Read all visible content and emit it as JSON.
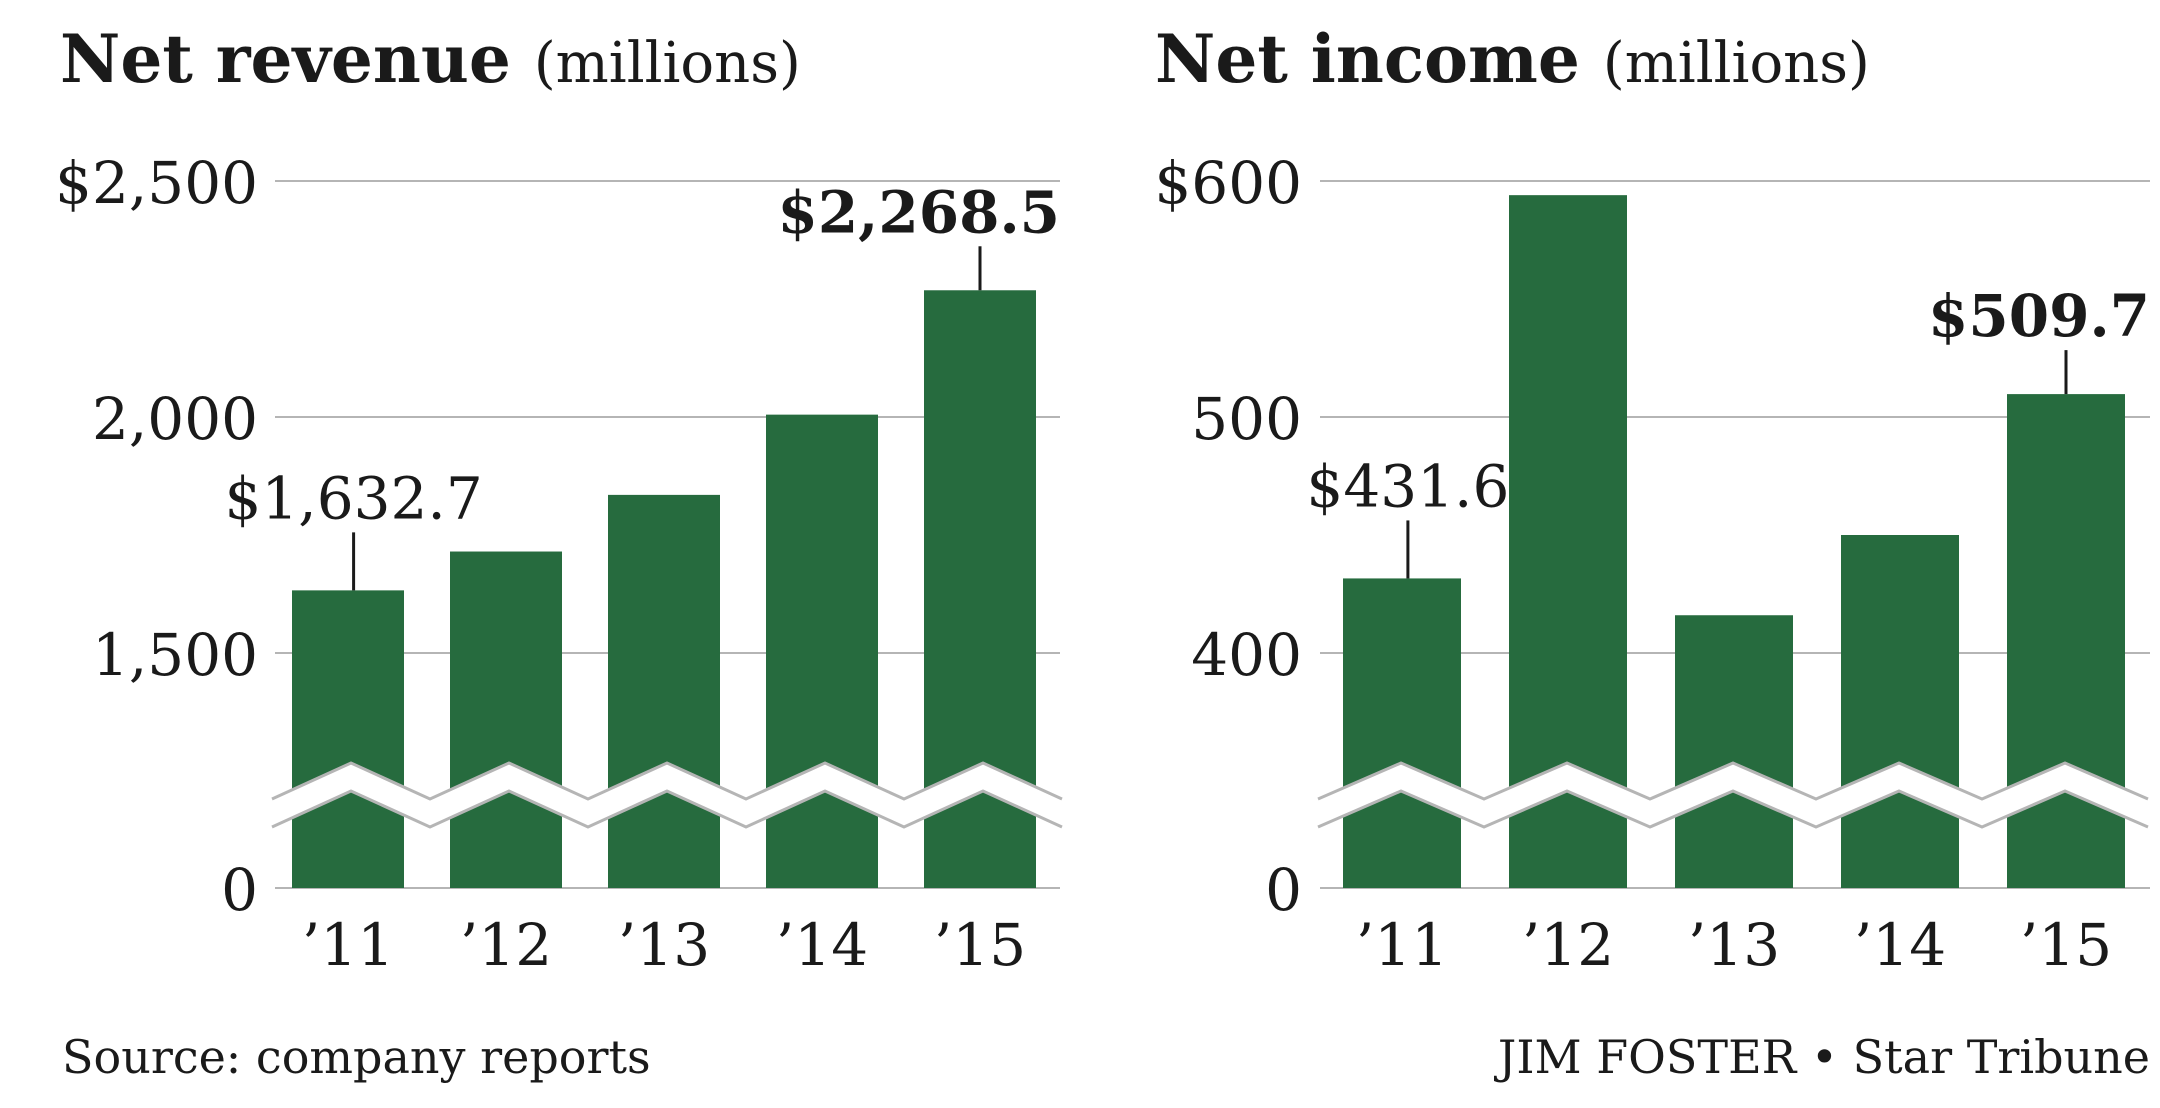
{
  "chart_data": [
    {
      "type": "bar",
      "title": "Net revenue",
      "title_unit": "(millions)",
      "categories": [
        "’11",
        "’12",
        "’13",
        "’14",
        "’15"
      ],
      "values": [
        1632.7,
        1715,
        1835,
        2005,
        2268.5
      ],
      "yticks": [
        {
          "value": 0,
          "label": "0"
        },
        {
          "value": 1500,
          "label": "1,500"
        },
        {
          "value": 2000,
          "label": "2,000"
        },
        {
          "value": 2500,
          "label": "$2,500"
        }
      ],
      "ylim": [
        1000,
        2500
      ],
      "axis_break": true,
      "grid": true,
      "annotations": [
        {
          "index": 0,
          "label": "$1,632.7",
          "bold": false
        },
        {
          "index": 4,
          "label": "$2,268.5",
          "bold": true
        }
      ]
    },
    {
      "type": "bar",
      "title": "Net income",
      "title_unit": "(millions)",
      "categories": [
        "’11",
        "’12",
        "’13",
        "’14",
        "’15"
      ],
      "values": [
        431.6,
        594,
        416,
        450,
        509.7
      ],
      "yticks": [
        {
          "value": 0,
          "label": "0"
        },
        {
          "value": 400,
          "label": "400"
        },
        {
          "value": 500,
          "label": "500"
        },
        {
          "value": 600,
          "label": "$600"
        }
      ],
      "ylim": [
        300,
        600
      ],
      "axis_break": true,
      "grid": true,
      "annotations": [
        {
          "index": 0,
          "label": "$431.6",
          "bold": false
        },
        {
          "index": 4,
          "label": "$509.7",
          "bold": true
        }
      ]
    }
  ],
  "colors": {
    "bar": "#266b3e",
    "grid": "#b5b5b5",
    "text": "#1a1a1a",
    "background": "#ffffff"
  },
  "footer": {
    "source": "Source: company reports",
    "credit": "JIM FOSTER • Star Tribune"
  }
}
